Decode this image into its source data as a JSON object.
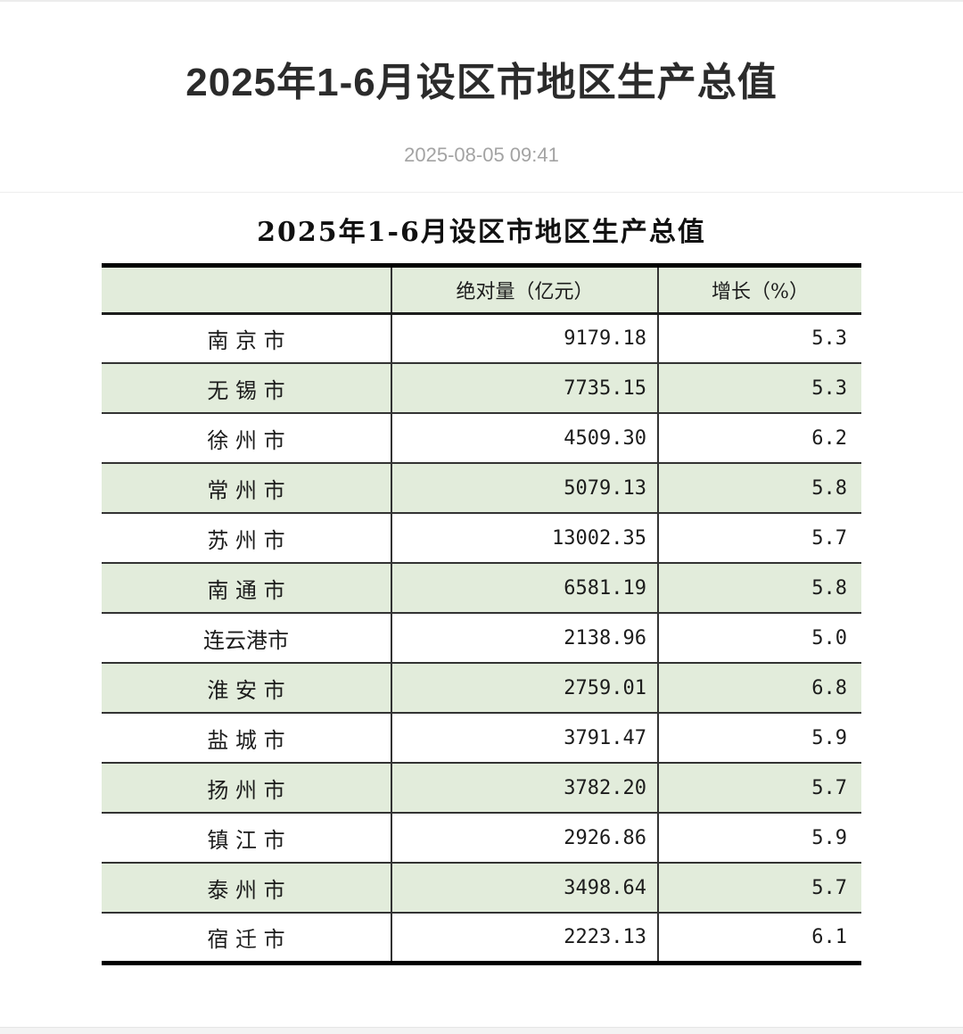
{
  "page": {
    "title": "2025年1-6月设区市地区生产总值",
    "timestamp": "2025-08-05 09:41"
  },
  "table": {
    "title": "2025年1-6月设区市地区生产总值",
    "columns": [
      "",
      "绝对量（亿元）",
      "增长（%）"
    ],
    "rows": [
      {
        "city": "南 京 市",
        "value": "9179.18",
        "growth": "5.3"
      },
      {
        "city": "无 锡 市",
        "value": "7735.15",
        "growth": "5.3"
      },
      {
        "city": "徐 州 市",
        "value": "4509.30",
        "growth": "6.2"
      },
      {
        "city": "常 州 市",
        "value": "5079.13",
        "growth": "5.8"
      },
      {
        "city": "苏 州 市",
        "value": "13002.35",
        "growth": "5.7"
      },
      {
        "city": "南 通 市",
        "value": "6581.19",
        "growth": "5.8"
      },
      {
        "city": "连云港市",
        "value": "2138.96",
        "growth": "5.0"
      },
      {
        "city": "淮 安 市",
        "value": "2759.01",
        "growth": "6.8"
      },
      {
        "city": "盐 城 市",
        "value": "3791.47",
        "growth": "5.9"
      },
      {
        "city": "扬 州 市",
        "value": "3782.20",
        "growth": "5.7"
      },
      {
        "city": "镇 江 市",
        "value": "2926.86",
        "growth": "5.9"
      },
      {
        "city": "泰 州 市",
        "value": "3498.64",
        "growth": "5.7"
      },
      {
        "city": "宿 迁 市",
        "value": "2223.13",
        "growth": "6.1"
      }
    ]
  },
  "colors": {
    "zebra_green": "#e2ecdb",
    "table_outer_border": "#000000",
    "row_line": "#333333",
    "timestamp_gray": "#a3a3a3",
    "title_text": "#2b2b2b"
  }
}
